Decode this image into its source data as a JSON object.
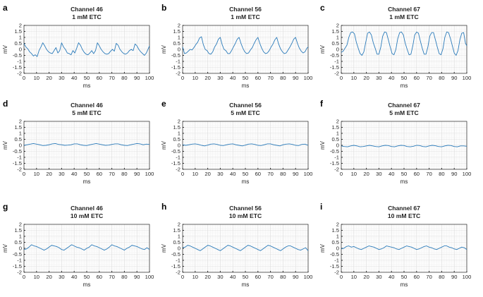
{
  "chart_data": [
    {
      "panel": "a",
      "type": "line",
      "title": [
        "Channel 46",
        "1 mM ETC"
      ],
      "xlabel": "ms",
      "ylabel": "mV",
      "xlim": [
        0,
        100
      ],
      "ylim": [
        -2,
        2
      ],
      "xticks": [
        "0",
        "10",
        "20",
        "30",
        "40",
        "50",
        "60",
        "70",
        "80",
        "90",
        "100"
      ],
      "yticks": [
        "2",
        "1.5",
        "1",
        "0.5",
        "0",
        "-0.5",
        "-1",
        "-1.5",
        "-2"
      ],
      "grid": true,
      "color": "#2b7bba",
      "x": [
        0,
        1.5,
        3,
        4.5,
        6,
        7.5,
        9,
        10.5,
        12,
        13.5,
        15,
        16.5,
        18,
        19.5,
        21,
        22.5,
        24,
        25.5,
        27,
        28.5,
        30,
        31.5,
        33,
        34.5,
        36,
        37.5,
        39,
        40.5,
        42,
        43.5,
        45,
        46.5,
        48,
        49.5,
        51,
        52.5,
        54,
        55.5,
        57,
        58.5,
        60,
        61.5,
        63,
        64.5,
        66,
        67.5,
        69,
        70.5,
        72,
        73.5,
        75,
        76.5,
        78,
        79.5,
        81,
        82.5,
        84,
        85.5,
        87,
        88.5,
        90,
        91.5,
        93,
        94.5,
        96,
        97.5,
        99,
        100
      ],
      "y": [
        0.5,
        0.2,
        0.05,
        -0.2,
        -0.35,
        -0.55,
        -0.45,
        -0.6,
        -0.1,
        0.2,
        0.55,
        0.3,
        0,
        -0.2,
        -0.3,
        -0.35,
        -0.1,
        0.15,
        -0.3,
        -0.1,
        0.55,
        0.2,
        0,
        -0.3,
        -0.35,
        -0.45,
        -0.1,
        -0.3,
        0.1,
        0.55,
        0.35,
        0,
        -0.25,
        -0.4,
        -0.45,
        -0.3,
        -0.1,
        -0.35,
        -0.1,
        0.55,
        0.3,
        0,
        -0.2,
        -0.35,
        -0.4,
        -0.35,
        -0.15,
        0,
        -0.15,
        0.5,
        0.35,
        0,
        -0.2,
        -0.35,
        -0.4,
        -0.3,
        -0.1,
        0,
        -0.1,
        0.45,
        0.3,
        0,
        -0.2,
        -0.35,
        -0.5,
        -0.3,
        0.05,
        0.3
      ]
    },
    {
      "panel": "b",
      "type": "line",
      "title": [
        "Channel 56",
        "1 mM ETC"
      ],
      "xlabel": "ms",
      "ylabel": "mV",
      "xlim": [
        0,
        100
      ],
      "ylim": [
        -2,
        2
      ],
      "xticks": [
        "0",
        "10",
        "20",
        "30",
        "40",
        "50",
        "60",
        "70",
        "80",
        "90",
        "100"
      ],
      "yticks": [
        "2",
        "1.5",
        "1",
        "0.5",
        "0",
        "-0.5",
        "-1",
        "-1.5",
        "-2"
      ],
      "grid": true,
      "color": "#2b7bba",
      "x": [
        0,
        1.5,
        3,
        4.5,
        6,
        7.5,
        9,
        10.5,
        12,
        13.5,
        15,
        16.5,
        18,
        19.5,
        21,
        22.5,
        24,
        25.5,
        27,
        28.5,
        30,
        31.5,
        33,
        34.5,
        36,
        37.5,
        39,
        40.5,
        42,
        43.5,
        45,
        46.5,
        48,
        49.5,
        51,
        52.5,
        54,
        55.5,
        57,
        58.5,
        60,
        61.5,
        63,
        64.5,
        66,
        67.5,
        69,
        70.5,
        72,
        73.5,
        75,
        76.5,
        78,
        79.5,
        81,
        82.5,
        84,
        85.5,
        87,
        88.5,
        90,
        91.5,
        93,
        94.5,
        96,
        97.5,
        99,
        100
      ],
      "y": [
        0.2,
        -0.35,
        -0.3,
        -0.15,
        0,
        -0.05,
        0.15,
        0.4,
        0.6,
        0.95,
        1.05,
        0.4,
        0,
        -0.1,
        -0.35,
        -0.4,
        -0.2,
        0.2,
        0.45,
        0.85,
        1,
        0.4,
        0,
        -0.1,
        -0.35,
        -0.35,
        -0.1,
        0.2,
        0.5,
        0.85,
        1,
        0.5,
        0.1,
        -0.2,
        -0.35,
        -0.3,
        -0.05,
        0.15,
        0.5,
        0.8,
        1,
        0.5,
        0.1,
        -0.2,
        -0.35,
        -0.3,
        -0.1,
        0.2,
        0.45,
        0.8,
        1,
        0.45,
        0.05,
        -0.2,
        -0.35,
        -0.3,
        -0.05,
        0.2,
        0.5,
        0.85,
        1,
        0.5,
        0.1,
        -0.15,
        -0.3,
        -0.2,
        0.1,
        0.2
      ]
    },
    {
      "panel": "c",
      "type": "line",
      "title": [
        "Channel 67",
        "1 mM ETC"
      ],
      "xlabel": "ms",
      "ylabel": "mV",
      "xlim": [
        0,
        100
      ],
      "ylim": [
        -2,
        2
      ],
      "xticks": [
        "0",
        "10",
        "20",
        "30",
        "40",
        "50",
        "60",
        "70",
        "80",
        "90",
        "100"
      ],
      "yticks": [
        "2",
        "1.5",
        "1",
        "0.5",
        "0",
        "-0.5",
        "-1",
        "-1.5",
        "-2"
      ],
      "grid": true,
      "color": "#2b7bba",
      "x": [
        0,
        1.5,
        3,
        4.5,
        6,
        7.5,
        9,
        10.5,
        12,
        13.5,
        15,
        16.5,
        18,
        19.5,
        21,
        22.5,
        24,
        25.5,
        27,
        28.5,
        30,
        31.5,
        33,
        34.5,
        36,
        37.5,
        39,
        40.5,
        42,
        43.5,
        45,
        46.5,
        48,
        49.5,
        51,
        52.5,
        54,
        55.5,
        57,
        58.5,
        60,
        61.5,
        63,
        64.5,
        66,
        67.5,
        69,
        70.5,
        72,
        73.5,
        75,
        76.5,
        78,
        79.5,
        81,
        82.5,
        84,
        85.5,
        87,
        88.5,
        90,
        91.5,
        93,
        94.5,
        96,
        97.5,
        99,
        100
      ],
      "y": [
        -0.25,
        -0.15,
        0.1,
        0.35,
        1.0,
        1.4,
        1.45,
        1.3,
        0.6,
        0.1,
        -0.35,
        -0.5,
        -0.2,
        0.6,
        1.35,
        1.45,
        1.2,
        0.55,
        0.1,
        -0.4,
        -0.4,
        0.2,
        1.1,
        1.45,
        1.4,
        0.8,
        0.2,
        -0.35,
        -0.45,
        0,
        0.9,
        1.4,
        1.45,
        1.2,
        0.5,
        0,
        -0.45,
        -0.4,
        0.3,
        1.2,
        1.45,
        1.35,
        0.7,
        0.1,
        -0.4,
        -0.4,
        0.2,
        1.1,
        1.4,
        1.4,
        0.8,
        0.2,
        -0.35,
        -0.45,
        0.05,
        1.0,
        1.45,
        1.4,
        0.9,
        0.3,
        -0.3,
        -0.5,
        -0.1,
        0.8,
        1.35,
        1.4,
        0.5,
        0.3
      ]
    },
    {
      "panel": "d",
      "type": "line",
      "title": [
        "Channel 46",
        "5 mM ETC"
      ],
      "xlabel": "ms",
      "ylabel": "mV",
      "xlim": [
        0,
        100
      ],
      "ylim": [
        -2,
        2
      ],
      "xticks": [
        "0",
        "10",
        "20",
        "30",
        "40",
        "50",
        "60",
        "70",
        "80",
        "90",
        "100"
      ],
      "yticks": [
        "2",
        "1.5",
        "1",
        "0.5",
        "0",
        "-0.5",
        "-1",
        "-1.5",
        "-2"
      ],
      "grid": true,
      "color": "#2b7bba",
      "x": [
        0,
        2.5,
        5,
        7.5,
        10,
        12.5,
        15,
        17.5,
        20,
        22.5,
        25,
        27.5,
        30,
        32.5,
        35,
        37.5,
        40,
        42.5,
        45,
        47.5,
        50,
        52.5,
        55,
        57.5,
        60,
        62.5,
        65,
        67.5,
        70,
        72.5,
        75,
        77.5,
        80,
        82.5,
        85,
        87.5,
        90,
        92.5,
        95,
        97.5,
        100
      ],
      "y": [
        0,
        0.05,
        0.1,
        0.15,
        0.1,
        0.05,
        -0.02,
        0,
        0.05,
        0.12,
        0.15,
        0.08,
        0.05,
        0,
        0.02,
        0.05,
        0.12,
        0.12,
        0.05,
        0,
        -0.02,
        0.05,
        0.1,
        0.15,
        0.1,
        0.05,
        0,
        0.02,
        0.08,
        0.12,
        0.12,
        0.05,
        0,
        -0.02,
        0.05,
        0.1,
        0.15,
        0.12,
        0.05,
        0.1,
        0.08
      ]
    },
    {
      "panel": "e",
      "type": "line",
      "title": [
        "Channel 56",
        "5 mM ETC"
      ],
      "xlabel": "ms",
      "ylabel": "mV",
      "xlim": [
        0,
        100
      ],
      "ylim": [
        -2,
        2
      ],
      "xticks": [
        "0",
        "10",
        "20",
        "30",
        "40",
        "50",
        "60",
        "70",
        "80",
        "90",
        "100"
      ],
      "yticks": [
        "2",
        "1.5",
        "1",
        "0.5",
        "0",
        "-0.5",
        "-1",
        "-1.5",
        "-2"
      ],
      "grid": true,
      "color": "#2b7bba",
      "x": [
        0,
        2.5,
        5,
        7.5,
        10,
        12.5,
        15,
        17.5,
        20,
        22.5,
        25,
        27.5,
        30,
        32.5,
        35,
        37.5,
        40,
        42.5,
        45,
        47.5,
        50,
        52.5,
        55,
        57.5,
        60,
        62.5,
        65,
        67.5,
        70,
        72.5,
        75,
        77.5,
        80,
        82.5,
        85,
        87.5,
        90,
        92.5,
        95,
        97.5,
        100
      ],
      "y": [
        0.05,
        0,
        0.05,
        0.1,
        0.12,
        0.08,
        0,
        -0.05,
        0.02,
        0.1,
        0.12,
        0.08,
        0,
        -0.02,
        0.05,
        0.1,
        0.12,
        0.05,
        0,
        -0.05,
        0.02,
        0.1,
        0.12,
        0.08,
        0,
        -0.02,
        0.05,
        0.12,
        0.12,
        0.05,
        0,
        -0.05,
        0.05,
        0.1,
        0.12,
        0.08,
        0,
        -0.02,
        0.08,
        0.1,
        0
      ]
    },
    {
      "panel": "f",
      "type": "line",
      "title": [
        "Channel 67",
        "5 mM ETC"
      ],
      "xlabel": "ms",
      "ylabel": "mV",
      "xlim": [
        0,
        100
      ],
      "ylim": [
        -2,
        2
      ],
      "xticks": [
        "0",
        "10",
        "20",
        "30",
        "40",
        "50",
        "60",
        "70",
        "80",
        "90",
        "100"
      ],
      "yticks": [
        "2",
        "1.5",
        "1",
        "0.5",
        "0",
        "-0.5",
        "-1",
        "-1.5",
        "-2"
      ],
      "grid": true,
      "color": "#2b7bba",
      "x": [
        0,
        2.5,
        5,
        7.5,
        10,
        12.5,
        15,
        17.5,
        20,
        22.5,
        25,
        27.5,
        30,
        32.5,
        35,
        37.5,
        40,
        42.5,
        45,
        47.5,
        50,
        52.5,
        55,
        57.5,
        60,
        62.5,
        65,
        67.5,
        70,
        72.5,
        75,
        77.5,
        80,
        82.5,
        85,
        87.5,
        90,
        92.5,
        95,
        97.5,
        100
      ],
      "y": [
        -0.05,
        -0.1,
        -0.12,
        -0.05,
        0,
        -0.05,
        -0.12,
        -0.1,
        -0.05,
        0,
        -0.05,
        -0.1,
        -0.12,
        -0.05,
        0,
        -0.02,
        -0.1,
        -0.12,
        -0.05,
        0,
        -0.02,
        -0.1,
        -0.12,
        -0.08,
        0,
        -0.02,
        -0.1,
        -0.12,
        -0.05,
        0,
        -0.03,
        -0.1,
        -0.12,
        -0.05,
        0,
        -0.02,
        -0.1,
        -0.12,
        -0.05,
        -0.05,
        -0.08
      ]
    },
    {
      "panel": "g",
      "type": "line",
      "title": [
        "Channel 46",
        "10 mM ETC"
      ],
      "xlabel": "ms",
      "ylabel": "mV",
      "xlim": [
        0,
        100
      ],
      "ylim": [
        -2,
        2
      ],
      "xticks": [
        "0",
        "10",
        "20",
        "30",
        "40",
        "50",
        "60",
        "70",
        "80",
        "90",
        "100"
      ],
      "yticks": [
        "2",
        "1.5",
        "1",
        "0.5",
        "0",
        "-0.5",
        "-1",
        "-1.5",
        "-2"
      ],
      "grid": true,
      "color": "#2b7bba",
      "x": [
        0,
        2,
        4,
        6,
        8,
        10,
        12,
        14,
        16,
        18,
        20,
        22,
        24,
        26,
        28,
        30,
        32,
        34,
        36,
        38,
        40,
        42,
        44,
        46,
        48,
        50,
        52,
        54,
        56,
        58,
        60,
        62,
        64,
        66,
        68,
        70,
        72,
        74,
        76,
        78,
        80,
        82,
        84,
        86,
        88,
        90,
        92,
        94,
        96,
        98,
        100
      ],
      "y": [
        -0.1,
        -0.05,
        0.1,
        0.3,
        0.2,
        0.15,
        0.05,
        -0.05,
        -0.15,
        -0.05,
        0.1,
        0.25,
        0.2,
        0.15,
        0.05,
        -0.1,
        -0.15,
        0,
        0.15,
        0.3,
        0.2,
        0.1,
        0.05,
        -0.05,
        -0.15,
        0,
        0.1,
        0.3,
        0.2,
        0.15,
        0.05,
        -0.05,
        -0.15,
        -0.05,
        0.1,
        0.3,
        0.2,
        0.15,
        0.05,
        -0.05,
        -0.15,
        0,
        0.1,
        0.25,
        0.2,
        0.15,
        0.05,
        -0.05,
        -0.1,
        0.05,
        -0.1
      ]
    },
    {
      "panel": "h",
      "type": "line",
      "title": [
        "Channel 56",
        "10 mM ETC"
      ],
      "xlabel": "ms",
      "ylabel": "mV",
      "xlim": [
        0,
        100
      ],
      "ylim": [
        -2,
        2
      ],
      "xticks": [
        "0",
        "10",
        "20",
        "30",
        "40",
        "50",
        "60",
        "70",
        "80",
        "90",
        "100"
      ],
      "yticks": [
        "2",
        "1.5",
        "1",
        "0.5",
        "0",
        "-0.5",
        "-1",
        "-1.5",
        "-2"
      ],
      "grid": true,
      "color": "#2b7bba",
      "x": [
        0,
        2,
        4,
        6,
        8,
        10,
        12,
        14,
        16,
        18,
        20,
        22,
        24,
        26,
        28,
        30,
        32,
        34,
        36,
        38,
        40,
        42,
        44,
        46,
        48,
        50,
        52,
        54,
        56,
        58,
        60,
        62,
        64,
        66,
        68,
        70,
        72,
        74,
        76,
        78,
        80,
        82,
        84,
        86,
        88,
        90,
        92,
        94,
        96,
        98,
        100
      ],
      "y": [
        0.05,
        0.1,
        0.25,
        0.2,
        0.1,
        0,
        -0.1,
        -0.2,
        -0.05,
        0.1,
        0.25,
        0.2,
        0.1,
        0,
        -0.1,
        -0.2,
        -0.05,
        0.1,
        0.25,
        0.2,
        0.1,
        0,
        -0.1,
        -0.2,
        -0.05,
        0.1,
        0.25,
        0.2,
        0.1,
        0,
        -0.1,
        -0.2,
        -0.05,
        0.1,
        0.25,
        0.2,
        0.1,
        0,
        -0.1,
        -0.2,
        -0.05,
        0.1,
        0.2,
        0.2,
        0.1,
        0,
        -0.1,
        -0.15,
        -0.05,
        0.05,
        -0.2
      ]
    },
    {
      "panel": "i",
      "type": "line",
      "title": [
        "Channel 67",
        "10 mM ETC"
      ],
      "xlabel": "ms",
      "ylabel": "mV",
      "xlim": [
        0,
        100
      ],
      "ylim": [
        -2,
        2
      ],
      "xticks": [
        "0",
        "10",
        "20",
        "30",
        "40",
        "50",
        "60",
        "70",
        "80",
        "90",
        "100"
      ],
      "yticks": [
        "2",
        "1.5",
        "1",
        "0.5",
        "0",
        "-0.5",
        "-1",
        "-1.5",
        "-2"
      ],
      "grid": true,
      "color": "#2b7bba",
      "x": [
        0,
        2,
        4,
        6,
        8,
        10,
        12,
        14,
        16,
        18,
        20,
        22,
        24,
        26,
        28,
        30,
        32,
        34,
        36,
        38,
        40,
        42,
        44,
        46,
        48,
        50,
        52,
        54,
        56,
        58,
        60,
        62,
        64,
        66,
        68,
        70,
        72,
        74,
        76,
        78,
        80,
        82,
        84,
        86,
        88,
        90,
        92,
        94,
        96,
        98,
        100
      ],
      "y": [
        -0.05,
        0,
        0.15,
        0.2,
        0.1,
        0.15,
        0.05,
        -0.05,
        -0.1,
        0,
        0.1,
        0.2,
        0.15,
        0.1,
        0,
        -0.1,
        -0.05,
        0.05,
        0.2,
        0.15,
        0.1,
        0.05,
        -0.05,
        -0.1,
        0,
        0.1,
        0.2,
        0.15,
        0.1,
        0,
        -0.1,
        -0.05,
        0.05,
        0.15,
        0.2,
        0.1,
        0.05,
        -0.05,
        -0.1,
        0,
        0.1,
        0.2,
        0.2,
        0.1,
        0.05,
        -0.05,
        -0.1,
        0,
        0.1,
        0.05,
        -0.1
      ]
    }
  ]
}
